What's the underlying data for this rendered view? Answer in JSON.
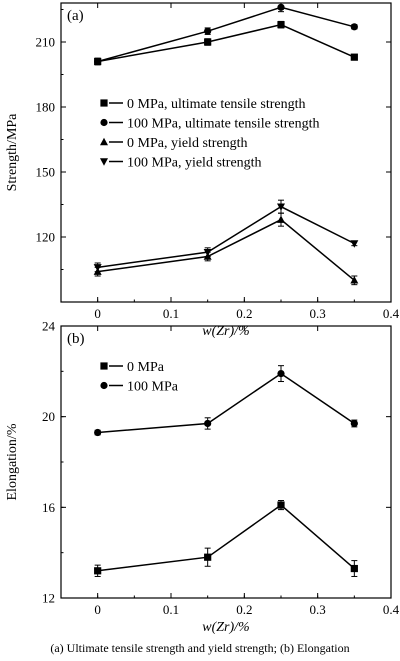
{
  "caption": "(a) Ultimate tensile strength and yield strength; (b) Elongation",
  "chart_data": [
    {
      "type": "line",
      "panel_label": "(a)",
      "xlabel": "w(Zr)/%",
      "ylabel": "Strength/MPa",
      "xlim": [
        -0.05,
        0.4
      ],
      "ylim": [
        90,
        228
      ],
      "xticks": [
        0,
        0.1,
        0.2,
        0.3,
        0.4
      ],
      "xtick_labels": [
        "0",
        "0.1",
        "0.2",
        "0.3",
        "0.4"
      ],
      "yticks": [
        120,
        150,
        180,
        210
      ],
      "ytick_labels": [
        "120",
        "150",
        "180",
        "210"
      ],
      "legend_position": "center-left",
      "x": [
        0,
        0.15,
        0.25,
        0.35
      ],
      "series": [
        {
          "name": "0 MPa, ultimate tensile strength",
          "marker": "square",
          "values": [
            201,
            210,
            218,
            203
          ],
          "errors": [
            1.5,
            1.5,
            1.5,
            1
          ]
        },
        {
          "name": "100 MPa, ultimate tensile strength",
          "marker": "circle",
          "values": [
            201,
            215,
            226,
            217
          ],
          "errors": [
            1.5,
            1.5,
            2,
            1
          ]
        },
        {
          "name": "0 MPa, yield strength",
          "marker": "triangle-up",
          "values": [
            104,
            111,
            128,
            100
          ],
          "errors": [
            2,
            2,
            3,
            2
          ]
        },
        {
          "name": "100 MPa, yield strength",
          "marker": "triangle-down",
          "values": [
            106,
            113,
            134,
            117
          ],
          "errors": [
            2,
            2,
            3,
            1
          ]
        }
      ]
    },
    {
      "type": "line",
      "panel_label": "(b)",
      "xlabel": "w(Zr)/%",
      "ylabel": "Elongation/%",
      "xlim": [
        -0.05,
        0.4
      ],
      "ylim": [
        12,
        24
      ],
      "xticks": [
        0,
        0.1,
        0.2,
        0.3,
        0.4
      ],
      "xtick_labels": [
        "0",
        "0.1",
        "0.2",
        "0.3",
        "0.4"
      ],
      "yticks": [
        12,
        16,
        20,
        24
      ],
      "ytick_labels": [
        "12",
        "16",
        "20",
        "24"
      ],
      "legend_position": "top-left",
      "x": [
        0,
        0.15,
        0.25,
        0.35
      ],
      "series": [
        {
          "name": "0 MPa",
          "marker": "square",
          "values": [
            13.2,
            13.8,
            16.1,
            13.3
          ],
          "errors": [
            0.25,
            0.4,
            0.2,
            0.35
          ]
        },
        {
          "name": "100 MPa",
          "marker": "circle",
          "values": [
            19.3,
            19.7,
            21.9,
            19.7
          ],
          "errors": [
            0.1,
            0.25,
            0.35,
            0.15
          ]
        }
      ]
    }
  ]
}
